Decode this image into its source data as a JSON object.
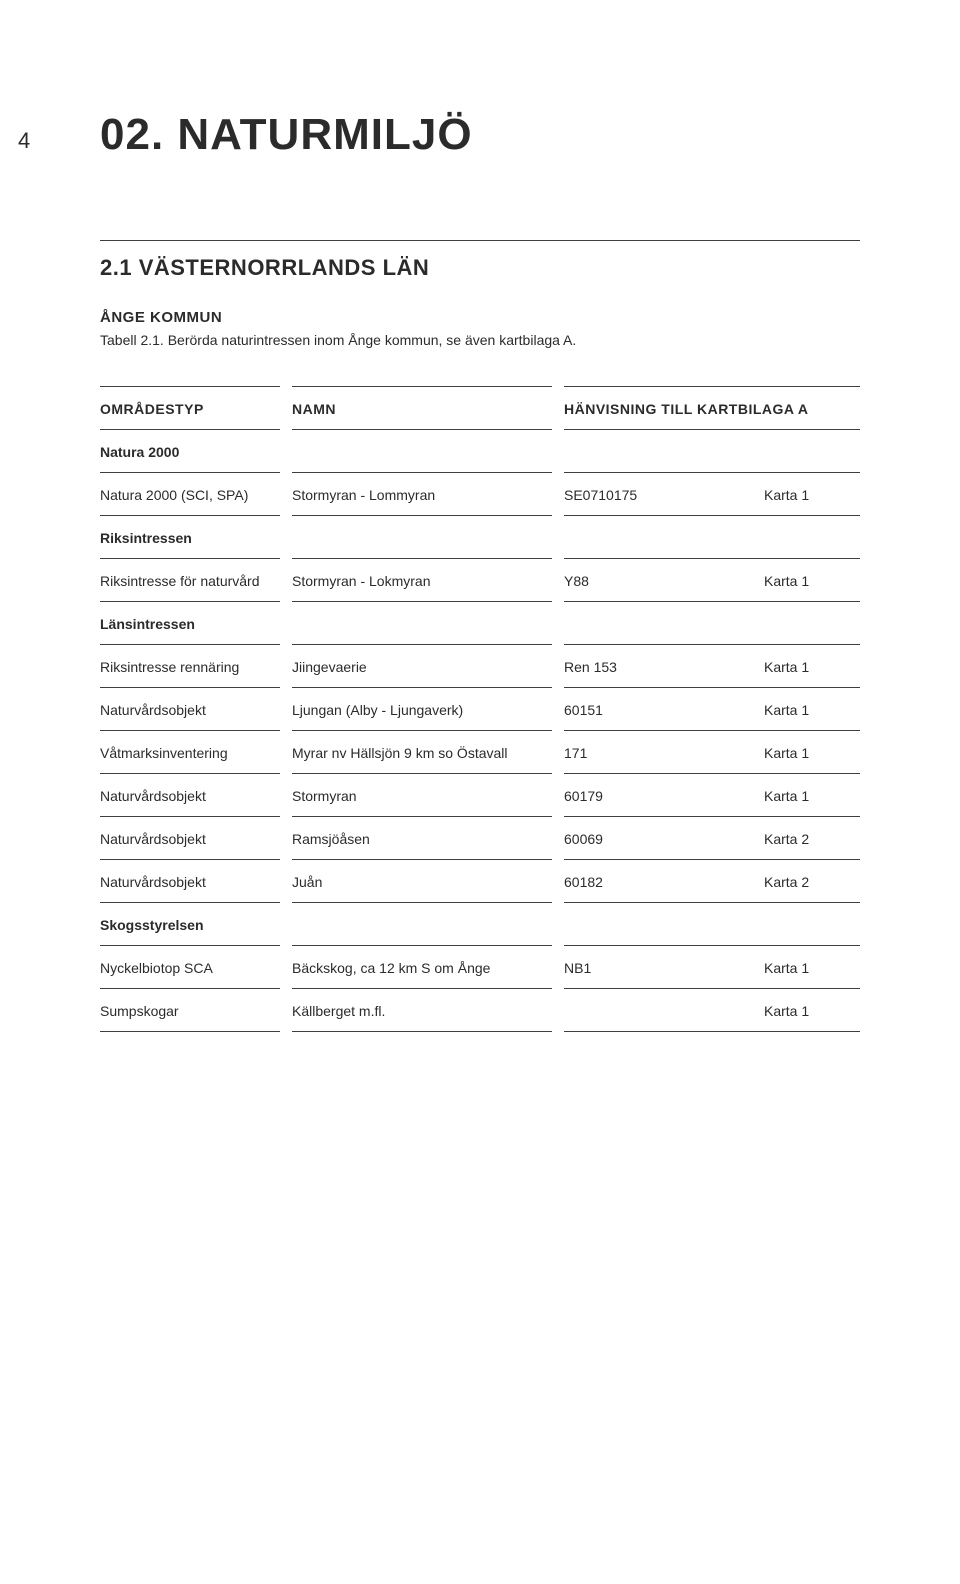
{
  "page_number": "4",
  "title": "02. NATURMILJÖ",
  "subtitle": "2.1 VÄSTERNORRLANDS LÄN",
  "sub_label": "ÅNGE KOMMUN",
  "caption": "Tabell 2.1. Berörda naturintressen inom Ånge kommun, se även kartbilaga A.",
  "columns": {
    "c1": "OMRÅDESTYP",
    "c2": "NAMN",
    "c34": "HÄNVISNING TILL KARTBILAGA A"
  },
  "rows": [
    {
      "type": "section",
      "c1": "Natura 2000"
    },
    {
      "type": "data",
      "c1": "Natura 2000 (SCI, SPA)",
      "c2": "Stormyran - Lommyran",
      "c3": "SE0710175",
      "c4": "Karta 1"
    },
    {
      "type": "section",
      "c1": "Riksintressen"
    },
    {
      "type": "data",
      "c1": "Riksintresse för naturvård",
      "c2": "Stormyran - Lokmyran",
      "c3": "Y88",
      "c4": "Karta 1"
    },
    {
      "type": "section",
      "c1": "Länsintressen"
    },
    {
      "type": "data",
      "c1": "Riksintresse rennäring",
      "c2": "Jiingevaerie",
      "c3": "Ren 153",
      "c4": "Karta 1"
    },
    {
      "type": "data",
      "c1": "Naturvårdsobjekt",
      "c2": "Ljungan (Alby - Ljungaverk)",
      "c3": "60151",
      "c4": "Karta 1"
    },
    {
      "type": "data",
      "c1": "Våtmarksinventering",
      "c2": "Myrar nv Hällsjön 9 km so Östavall",
      "c3": "171",
      "c4": "Karta 1"
    },
    {
      "type": "data",
      "c1": "Naturvårdsobjekt",
      "c2": "Stormyran",
      "c3": "60179",
      "c4": "Karta 1"
    },
    {
      "type": "data",
      "c1": "Naturvårdsobjekt",
      "c2": "Ramsjöåsen",
      "c3": "60069",
      "c4": "Karta 2"
    },
    {
      "type": "data",
      "c1": "Naturvårdsobjekt",
      "c2": "Juån",
      "c3": "60182",
      "c4": "Karta 2"
    },
    {
      "type": "section",
      "c1": "Skogsstyrelsen"
    },
    {
      "type": "data",
      "c1": "Nyckelbiotop SCA",
      "c2": "Bäckskog, ca 12 km S om Ånge",
      "c3": "NB1",
      "c4": "Karta 1"
    },
    {
      "type": "data",
      "c1": "Sumpskogar",
      "c2": "Källberget m.fl.",
      "c3": "",
      "c4": "Karta 1"
    }
  ],
  "colors": {
    "text": "#2b2b2b",
    "rule": "#404040",
    "background": "#ffffff"
  },
  "typography": {
    "h1_fontsize_pt": 33,
    "h2_fontsize_pt": 17,
    "body_fontsize_pt": 11
  }
}
